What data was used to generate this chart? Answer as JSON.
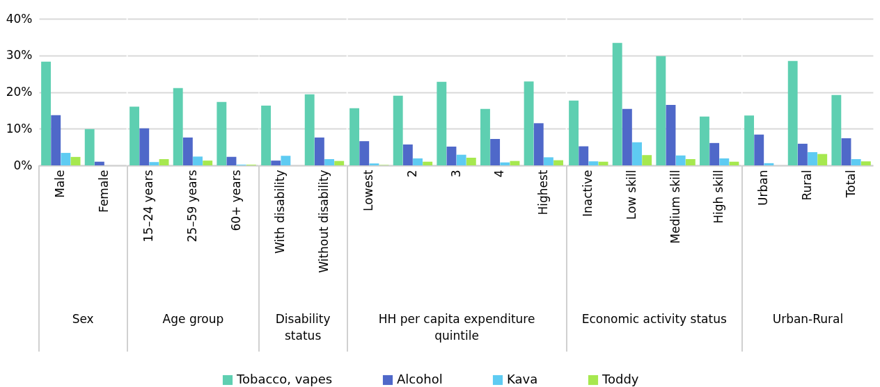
{
  "chart_data": [
    {
      "type": "bar",
      "xlabel": "Sex",
      "categories": [
        "Male",
        "Female"
      ],
      "series": [
        {
          "name": "Tobacco, vapes",
          "color": "#5ecfb1",
          "values": [
            28.3,
            9.9
          ]
        },
        {
          "name": "Alcohol",
          "color": "#4f68c9",
          "values": [
            13.7,
            1.0
          ]
        },
        {
          "name": "Kava",
          "color": "#5ecbf2",
          "values": [
            3.4,
            0
          ]
        },
        {
          "name": "Toddy",
          "color": "#a6e84f",
          "values": [
            2.3,
            0
          ]
        }
      ],
      "ylim": [
        0,
        40
      ],
      "yticks": [
        {
          "value": 0,
          "label": "0%"
        },
        {
          "value": 10,
          "label": "10%"
        },
        {
          "value": 20,
          "label": "20%"
        },
        {
          "value": 30,
          "label": "30%"
        },
        {
          "value": 40,
          "label": "40%"
        }
      ],
      "grid": "y",
      "legend": "bottom"
    },
    {
      "type": "bar",
      "xlabel": "Age group",
      "categories": [
        "15–24 years",
        "25–59 years",
        "60+ years"
      ],
      "series": [
        {
          "name": "Tobacco, vapes",
          "color": "#5ecfb1",
          "values": [
            16.0,
            21.1,
            17.3
          ]
        },
        {
          "name": "Alcohol",
          "color": "#4f68c9",
          "values": [
            10.1,
            7.6,
            2.3
          ]
        },
        {
          "name": "Kava",
          "color": "#5ecbf2",
          "values": [
            0.9,
            2.4,
            0.2
          ]
        },
        {
          "name": "Toddy",
          "color": "#a6e84f",
          "values": [
            1.7,
            1.3,
            0.2
          ]
        }
      ],
      "ylim": [
        0,
        40
      ],
      "yticks": [
        0,
        10,
        20,
        30,
        40
      ],
      "tick_labels": "x",
      "grid": "y",
      "legend": "bottom"
    },
    {
      "type": "bar",
      "xlabel": "Disability status",
      "categories": [
        "With disability",
        "Without disability"
      ],
      "series": [
        {
          "name": "Tobacco, vapes",
          "color": "#5ecfb1",
          "values": [
            16.3,
            19.4
          ]
        },
        {
          "name": "Alcohol",
          "color": "#4f68c9",
          "values": [
            1.3,
            7.6
          ]
        },
        {
          "name": "Kava",
          "color": "#5ecbf2",
          "values": [
            2.6,
            1.7
          ]
        },
        {
          "name": "Toddy",
          "color": "#a6e84f",
          "values": [
            0,
            1.2
          ]
        }
      ],
      "ylim": [
        0,
        40
      ],
      "yticks": [
        0,
        10,
        20,
        30,
        40
      ],
      "tick_labels": "x",
      "grid": "y",
      "legend": "bottom"
    },
    {
      "type": "bar",
      "xlabel": "HH per capita expenditure quintile",
      "categories": [
        "Lowest",
        "2",
        "3",
        "4",
        "Highest"
      ],
      "series": [
        {
          "name": "Tobacco, vapes",
          "color": "#5ecfb1",
          "values": [
            15.6,
            19.0,
            22.8,
            15.4,
            22.9
          ]
        },
        {
          "name": "Alcohol",
          "color": "#4f68c9",
          "values": [
            6.6,
            5.7,
            5.1,
            7.2,
            11.5
          ]
        },
        {
          "name": "Kava",
          "color": "#5ecbf2",
          "values": [
            0.5,
            1.9,
            2.9,
            0.8,
            2.2
          ]
        },
        {
          "name": "Toddy",
          "color": "#a6e84f",
          "values": [
            0.1,
            1.0,
            2.1,
            1.2,
            1.4
          ]
        }
      ],
      "ylim": [
        0,
        40
      ],
      "yticks": [
        0,
        10,
        20,
        30,
        40
      ],
      "tick_labels": "x",
      "grid": "y",
      "legend": "bottom"
    },
    {
      "type": "bar",
      "xlabel": "Economic activity status",
      "categories": [
        "Inactive",
        "Low skill",
        "Medium skill",
        "High skill"
      ],
      "series": [
        {
          "name": "Tobacco, vapes",
          "color": "#5ecfb1",
          "values": [
            17.7,
            33.4,
            29.8,
            13.3
          ]
        },
        {
          "name": "Alcohol",
          "color": "#4f68c9",
          "values": [
            5.2,
            15.4,
            16.5,
            6.1
          ]
        },
        {
          "name": "Kava",
          "color": "#5ecbf2",
          "values": [
            1.1,
            6.3,
            2.7,
            1.9
          ]
        },
        {
          "name": "Toddy",
          "color": "#a6e84f",
          "values": [
            1.0,
            2.8,
            1.7,
            1.0
          ]
        }
      ],
      "ylim": [
        0,
        40
      ],
      "yticks": [
        0,
        10,
        20,
        30,
        40
      ],
      "tick_labels": "x",
      "grid": "y",
      "legend": "bottom"
    },
    {
      "type": "bar",
      "xlabel": "Urban-Rural",
      "categories": [
        "Urban",
        "Rural",
        "Total"
      ],
      "series": [
        {
          "name": "Tobacco, vapes",
          "color": "#5ecfb1",
          "values": [
            13.6,
            28.5,
            19.2
          ]
        },
        {
          "name": "Alcohol",
          "color": "#4f68c9",
          "values": [
            8.4,
            5.9,
            7.4
          ]
        },
        {
          "name": "Kava",
          "color": "#5ecbf2",
          "values": [
            0.6,
            3.6,
            1.7
          ]
        },
        {
          "name": "Toddy",
          "color": "#a6e84f",
          "values": [
            0,
            3.1,
            1.1
          ]
        }
      ],
      "ylim": [
        0,
        40
      ],
      "yticks": [
        0,
        10,
        20,
        30,
        40
      ],
      "tick_labels": "x",
      "grid": "y",
      "legend": "bottom"
    }
  ]
}
